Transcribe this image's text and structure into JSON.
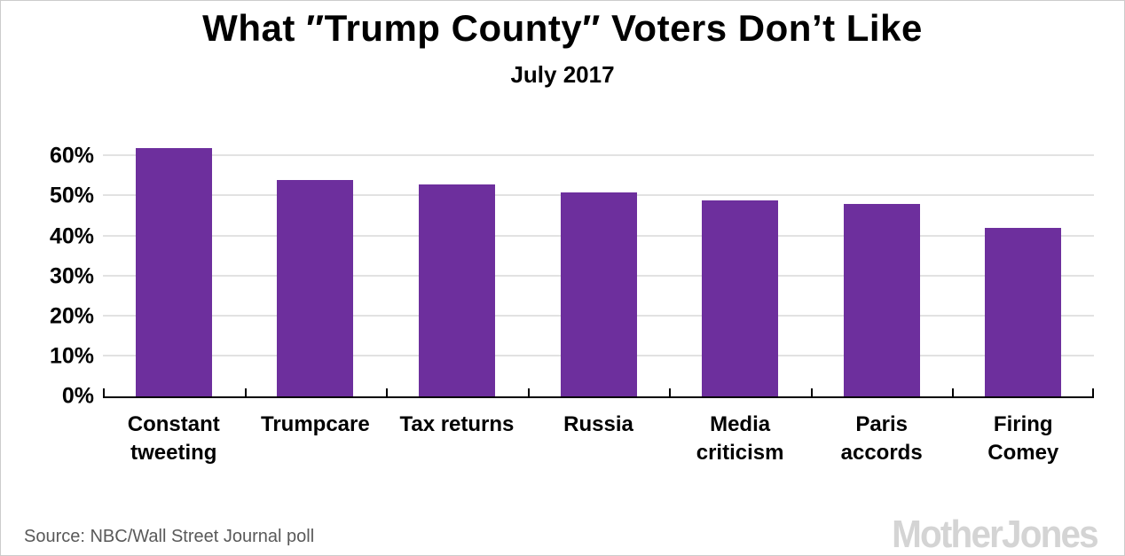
{
  "header": {
    "title": "What ″Trump County″ Voters Don’t Like",
    "subtitle": "July 2017"
  },
  "chart_data": {
    "type": "bar",
    "title": "What ″Trump County″ Voters Don’t Like",
    "subtitle": "July 2017",
    "categories": [
      "Constant tweeting",
      "Trumpcare",
      "Tax returns",
      "Russia",
      "Media criticism",
      "Paris accords",
      "Firing Comey"
    ],
    "values": [
      62,
      54,
      53,
      51,
      49,
      48,
      42
    ],
    "unit": "%",
    "xlabel": "",
    "ylabel": "",
    "ylim": [
      0,
      66.7
    ],
    "yticks": [
      0,
      10,
      20,
      30,
      40,
      50,
      60
    ],
    "ytick_labels": [
      "0%",
      "10%",
      "20%",
      "30%",
      "40%",
      "50%",
      "60%"
    ],
    "grid": "horizontal",
    "legend": "none",
    "bar_color": "#6d2f9d"
  },
  "footer": {
    "source": "Source: NBC/Wall Street Journal poll",
    "logo": "MotherJones"
  },
  "colors": {
    "bar": "#6d2f9d",
    "gridline": "#e2e2e2",
    "axis": "#000000",
    "text": "#000000",
    "source_text": "#595959",
    "logo": "#d4d4d4",
    "background": "#ffffff",
    "border": "#cccccc"
  }
}
